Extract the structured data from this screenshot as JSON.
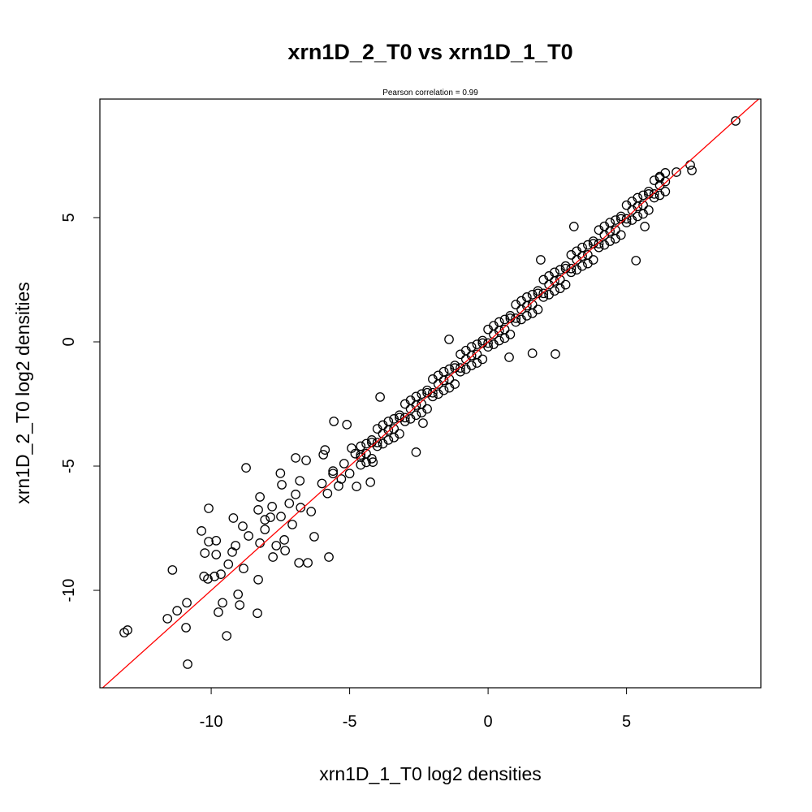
{
  "chart_data": {
    "type": "scatter",
    "title": "xrn1D_2_T0 vs xrn1D_1_T0",
    "subtitle": "Pearson correlation =  0.99",
    "xlabel": "xrn1D_1_T0 log2 densities",
    "ylabel": "xrn1D_2_T0 log2 densities",
    "xlim": [
      -14.02,
      9.85
    ],
    "ylim": [
      -13.92,
      9.77
    ],
    "xticks": [
      -10,
      -5,
      0,
      5
    ],
    "yticks": [
      -10,
      -5,
      0,
      5
    ],
    "xtick_labels": [
      "-10",
      "-5",
      "0",
      "5"
    ],
    "ytick_labels": [
      "-10",
      "-5",
      "0",
      "5"
    ],
    "grid": false,
    "reference_line": {
      "slope": 1,
      "intercept": 0,
      "color": "#ff0000"
    },
    "point_color": "#000000",
    "points": [
      [
        8.94,
        8.89
      ],
      [
        7.36,
        6.9
      ],
      [
        7.3,
        7.12
      ],
      [
        6.8,
        6.83
      ],
      [
        6.2,
        6.6
      ],
      [
        5.34,
        3.27
      ],
      [
        5.66,
        4.64
      ],
      [
        3.1,
        4.64
      ],
      [
        1.9,
        3.3
      ],
      [
        2.43,
        -0.49
      ],
      [
        1.6,
        -0.46
      ],
      [
        0.76,
        -0.62
      ],
      [
        -1.41,
        0.1
      ],
      [
        -3.9,
        -2.22
      ],
      [
        -5.57,
        -3.2
      ],
      [
        -5.1,
        -3.33
      ],
      [
        -2.35,
        -3.27
      ],
      [
        -2.6,
        -4.44
      ],
      [
        -4.25,
        -5.65
      ],
      [
        -5.75,
        -8.66
      ],
      [
        -8.74,
        -5.07
      ],
      [
        -8.24,
        -6.24
      ],
      [
        -10.09,
        -6.7
      ],
      [
        -11.4,
        -9.18
      ],
      [
        -10.35,
        -7.61
      ],
      [
        -10.85,
        -12.97
      ],
      [
        -9.44,
        -11.83
      ],
      [
        -13.14,
        -11.7
      ],
      [
        -13.02,
        -11.6
      ],
      [
        -11.58,
        -11.14
      ],
      [
        -11.23,
        -10.82
      ],
      [
        -10.88,
        -10.5
      ],
      [
        -10.91,
        -11.5
      ],
      [
        -10.26,
        -9.44
      ],
      [
        -10.12,
        -9.54
      ],
      [
        -9.88,
        -9.44
      ],
      [
        -9.65,
        -9.35
      ],
      [
        -9.74,
        -10.88
      ],
      [
        -9.59,
        -10.5
      ],
      [
        -8.97,
        -10.59
      ],
      [
        -9.03,
        -10.16
      ],
      [
        -8.33,
        -10.92
      ],
      [
        -8.3,
        -9.57
      ],
      [
        -8.83,
        -9.12
      ],
      [
        -9.12,
        -8.2
      ],
      [
        -9.24,
        -8.46
      ],
      [
        -9.38,
        -8.95
      ],
      [
        -9.82,
        -8.56
      ],
      [
        -10.23,
        -8.5
      ],
      [
        -10.09,
        -8.04
      ],
      [
        -9.82,
        -8.0
      ],
      [
        -8.86,
        -7.42
      ],
      [
        -9.2,
        -7.09
      ],
      [
        -8.06,
        -7.55
      ],
      [
        -8.65,
        -7.81
      ],
      [
        -8.24,
        -8.1
      ],
      [
        -7.65,
        -8.2
      ],
      [
        -7.77,
        -8.66
      ],
      [
        -7.36,
        -7.97
      ],
      [
        -6.83,
        -8.89
      ],
      [
        -6.51,
        -8.89
      ],
      [
        -6.28,
        -7.84
      ],
      [
        -6.39,
        -6.83
      ],
      [
        -7.5,
        -5.29
      ],
      [
        -7.45,
        -5.75
      ],
      [
        -6.95,
        -4.67
      ],
      [
        -6.57,
        -4.77
      ],
      [
        -6.8,
        -5.59
      ],
      [
        -6.95,
        -6.14
      ],
      [
        -6.77,
        -6.67
      ],
      [
        -7.48,
        -7.03
      ],
      [
        -7.86,
        -7.06
      ],
      [
        -8.06,
        -7.16
      ],
      [
        -8.3,
        -6.76
      ],
      [
        -7.8,
        -6.63
      ],
      [
        -7.18,
        -6.5
      ],
      [
        -7.07,
        -7.35
      ],
      [
        -7.33,
        -8.4
      ],
      [
        -5.95,
        -4.54
      ],
      [
        -5.89,
        -4.35
      ],
      [
        -5.6,
        -5.2
      ],
      [
        -4.75,
        -5.82
      ],
      [
        -4.93,
        -4.28
      ],
      [
        -5.3,
        -5.52
      ],
      [
        -4.6,
        -4.64
      ],
      [
        -4.16,
        -4.84
      ],
      [
        -6.0,
        -5.7
      ],
      [
        -5.8,
        -6.1
      ],
      [
        -5.6,
        -5.3
      ],
      [
        -5.4,
        -5.8
      ],
      [
        -5.2,
        -4.9
      ],
      [
        -5.0,
        -5.3
      ],
      [
        -4.8,
        -4.5
      ],
      [
        -4.6,
        -4.2
      ],
      [
        -4.6,
        -4.95
      ],
      [
        -4.6,
        -4.55
      ],
      [
        -4.4,
        -4.85
      ],
      [
        -4.4,
        -4.1
      ],
      [
        -4.4,
        -4.5
      ],
      [
        -4.2,
        -3.95
      ],
      [
        -4.2,
        -4.7
      ],
      [
        -4.2,
        -4.05
      ],
      [
        -4.0,
        -3.5
      ],
      [
        -4.0,
        -4.2
      ],
      [
        -4.0,
        -4.05
      ],
      [
        -3.8,
        -4.1
      ],
      [
        -3.8,
        -3.35
      ],
      [
        -3.8,
        -3.7
      ],
      [
        -3.6,
        -3.2
      ],
      [
        -3.6,
        -3.95
      ],
      [
        -3.6,
        -3.55
      ],
      [
        -3.4,
        -3.85
      ],
      [
        -3.4,
        -3.1
      ],
      [
        -3.4,
        -3.5
      ],
      [
        -3.2,
        -2.95
      ],
      [
        -3.2,
        -3.7
      ],
      [
        -3.2,
        -3.05
      ],
      [
        -3.0,
        -2.5
      ],
      [
        -3.0,
        -3.2
      ],
      [
        -3.0,
        -3.05
      ],
      [
        -2.8,
        -3.1
      ],
      [
        -2.8,
        -2.35
      ],
      [
        -2.8,
        -2.7
      ],
      [
        -2.6,
        -2.2
      ],
      [
        -2.6,
        -2.95
      ],
      [
        -2.6,
        -2.55
      ],
      [
        -2.4,
        -2.85
      ],
      [
        -2.4,
        -2.1
      ],
      [
        -2.4,
        -2.5
      ],
      [
        -2.2,
        -1.95
      ],
      [
        -2.2,
        -2.7
      ],
      [
        -2.2,
        -2.05
      ],
      [
        -2.0,
        -1.5
      ],
      [
        -2.0,
        -2.2
      ],
      [
        -2.0,
        -2.05
      ],
      [
        -1.8,
        -2.1
      ],
      [
        -1.8,
        -1.35
      ],
      [
        -1.8,
        -1.7
      ],
      [
        -1.6,
        -1.2
      ],
      [
        -1.6,
        -1.95
      ],
      [
        -1.6,
        -1.55
      ],
      [
        -1.4,
        -1.85
      ],
      [
        -1.4,
        -1.1
      ],
      [
        -1.4,
        -1.5
      ],
      [
        -1.2,
        -0.95
      ],
      [
        -1.2,
        -1.7
      ],
      [
        -1.2,
        -1.05
      ],
      [
        -1.0,
        -0.5
      ],
      [
        -1.0,
        -1.2
      ],
      [
        -1.0,
        -1.05
      ],
      [
        -0.8,
        -1.1
      ],
      [
        -0.8,
        -0.35
      ],
      [
        -0.8,
        -0.7
      ],
      [
        -0.6,
        -0.2
      ],
      [
        -0.6,
        -0.95
      ],
      [
        -0.6,
        -0.55
      ],
      [
        -0.4,
        -0.85
      ],
      [
        -0.4,
        -0.1
      ],
      [
        -0.4,
        -0.5
      ],
      [
        -0.2,
        0.05
      ],
      [
        -0.2,
        -0.7
      ],
      [
        -0.2,
        -0.05
      ],
      [
        0,
        0.5
      ],
      [
        0,
        -0.2
      ],
      [
        0,
        -0.05
      ],
      [
        0.2,
        -0.1
      ],
      [
        0.2,
        0.65
      ],
      [
        0.2,
        0.3
      ],
      [
        0.4,
        0.8
      ],
      [
        0.4,
        0.05
      ],
      [
        0.4,
        0.45
      ],
      [
        0.6,
        0.15
      ],
      [
        0.6,
        0.9
      ],
      [
        0.6,
        0.5
      ],
      [
        0.8,
        1.05
      ],
      [
        0.8,
        0.3
      ],
      [
        0.8,
        0.95
      ],
      [
        1.0,
        1.5
      ],
      [
        1.0,
        0.8
      ],
      [
        1.0,
        0.95
      ],
      [
        1.2,
        0.9
      ],
      [
        1.2,
        1.65
      ],
      [
        1.2,
        1.3
      ],
      [
        1.4,
        1.8
      ],
      [
        1.4,
        1.05
      ],
      [
        1.4,
        1.45
      ],
      [
        1.6,
        1.15
      ],
      [
        1.6,
        1.9
      ],
      [
        1.6,
        1.5
      ],
      [
        1.8,
        2.05
      ],
      [
        1.8,
        1.3
      ],
      [
        1.8,
        1.95
      ],
      [
        2.0,
        2.5
      ],
      [
        2.0,
        1.8
      ],
      [
        2.0,
        1.95
      ],
      [
        2.2,
        1.9
      ],
      [
        2.2,
        2.65
      ],
      [
        2.2,
        2.3
      ],
      [
        2.4,
        2.8
      ],
      [
        2.4,
        2.05
      ],
      [
        2.4,
        2.45
      ],
      [
        2.6,
        2.15
      ],
      [
        2.6,
        2.9
      ],
      [
        2.6,
        2.5
      ],
      [
        2.8,
        3.05
      ],
      [
        2.8,
        2.3
      ],
      [
        2.8,
        2.95
      ],
      [
        3.0,
        3.5
      ],
      [
        3.0,
        2.8
      ],
      [
        3.0,
        2.95
      ],
      [
        3.2,
        2.9
      ],
      [
        3.2,
        3.65
      ],
      [
        3.2,
        3.3
      ],
      [
        3.4,
        3.8
      ],
      [
        3.4,
        3.05
      ],
      [
        3.4,
        3.45
      ],
      [
        3.6,
        3.15
      ],
      [
        3.6,
        3.9
      ],
      [
        3.6,
        3.5
      ],
      [
        3.8,
        4.05
      ],
      [
        3.8,
        3.3
      ],
      [
        3.8,
        3.95
      ],
      [
        4.0,
        4.5
      ],
      [
        4.0,
        3.8
      ],
      [
        4.0,
        3.95
      ],
      [
        4.2,
        3.9
      ],
      [
        4.2,
        4.65
      ],
      [
        4.2,
        4.3
      ],
      [
        4.4,
        4.8
      ],
      [
        4.4,
        4.05
      ],
      [
        4.4,
        4.45
      ],
      [
        4.6,
        4.15
      ],
      [
        4.6,
        4.9
      ],
      [
        4.6,
        4.5
      ],
      [
        4.8,
        5.05
      ],
      [
        4.8,
        4.3
      ],
      [
        4.8,
        4.95
      ],
      [
        5.0,
        5.5
      ],
      [
        5.0,
        4.8
      ],
      [
        5.0,
        4.95
      ],
      [
        5.2,
        4.9
      ],
      [
        5.2,
        5.65
      ],
      [
        5.2,
        5.3
      ],
      [
        5.4,
        5.8
      ],
      [
        5.4,
        5.05
      ],
      [
        5.4,
        5.45
      ],
      [
        5.6,
        5.15
      ],
      [
        5.6,
        5.9
      ],
      [
        5.6,
        5.5
      ],
      [
        5.8,
        6.05
      ],
      [
        5.8,
        5.3
      ],
      [
        5.8,
        5.95
      ],
      [
        6.0,
        6.5
      ],
      [
        6.0,
        5.8
      ],
      [
        6.0,
        5.95
      ],
      [
        6.2,
        5.9
      ],
      [
        6.2,
        6.65
      ],
      [
        6.2,
        6.3
      ],
      [
        6.4,
        6.8
      ],
      [
        6.4,
        6.05
      ],
      [
        6.4,
        6.45
      ]
    ]
  }
}
